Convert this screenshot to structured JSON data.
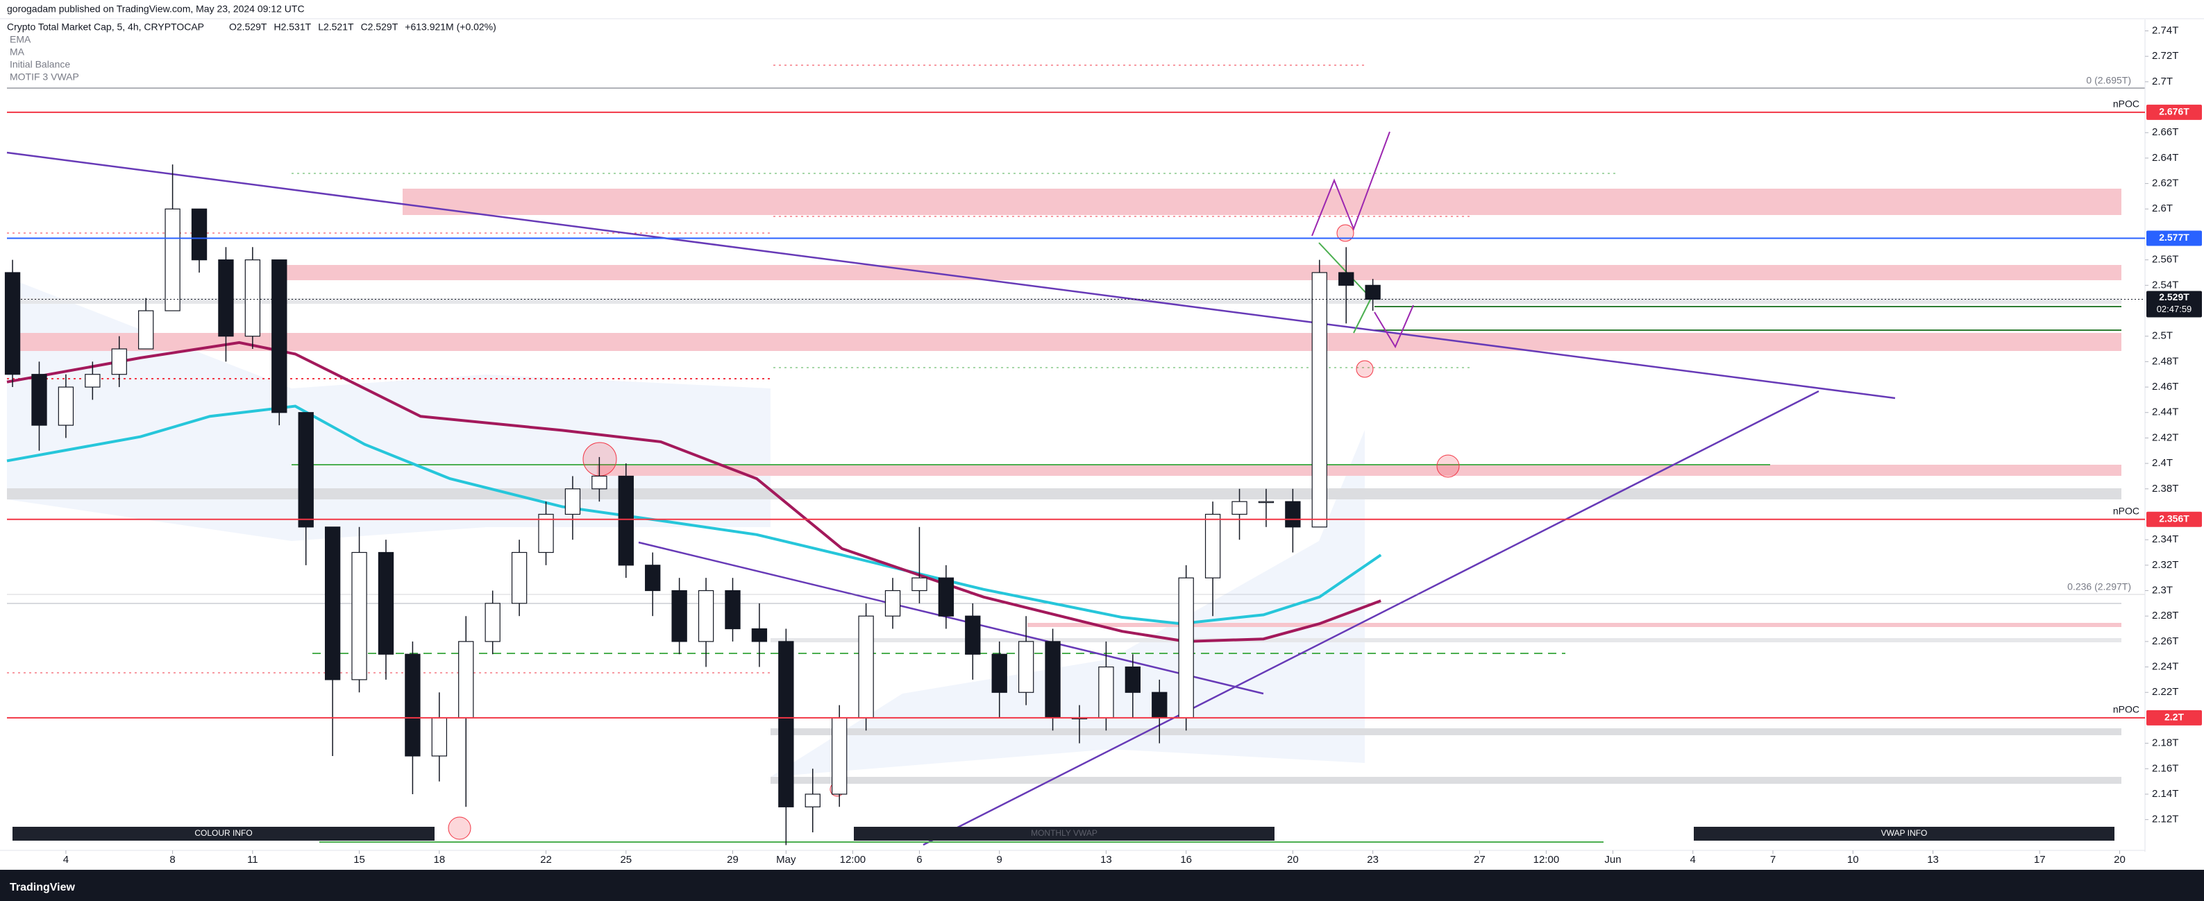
{
  "header": {
    "publisher": "gorogadam published on TradingView.com, May 23, 2024 09:12 UTC"
  },
  "chart_data": {
    "type": "candlestick",
    "title": "Crypto Total Market Cap, 5, 4h, CRYPTOCAP",
    "ohlc_labels": [
      "O2.529T",
      "H2.531T",
      "L2.521T",
      "C2.529T",
      "+613.921M (+0.02%)"
    ],
    "other_indicators": [
      "Initial Balance",
      "MOTIF 3 VWAP"
    ],
    "x": [
      2,
      3,
      4,
      5,
      6,
      7,
      8,
      9,
      10,
      11,
      12,
      13,
      14,
      15,
      16,
      17,
      18,
      19,
      20,
      21,
      22,
      23,
      24,
      25,
      26,
      27,
      28,
      29,
      30,
      31,
      32,
      33,
      34,
      35,
      36,
      37,
      38,
      39,
      40,
      41,
      42,
      43,
      44,
      45,
      46,
      47,
      48,
      49,
      50,
      51,
      52,
      53
    ],
    "open": [
      2.55,
      2.47,
      2.43,
      2.46,
      2.47,
      2.49,
      2.52,
      2.6,
      2.56,
      2.5,
      2.56,
      2.44,
      2.35,
      2.23,
      2.33,
      2.25,
      2.17,
      2.2,
      2.26,
      2.29,
      2.33,
      2.36,
      2.38,
      2.39,
      2.32,
      2.3,
      2.26,
      2.3,
      2.27,
      2.26,
      2.13,
      2.14,
      2.2,
      2.28,
      2.3,
      2.31,
      2.28,
      2.25,
      2.22,
      2.26,
      2.2,
      2.2,
      2.24,
      2.22,
      2.2,
      2.31,
      2.36,
      2.37,
      2.37,
      2.35,
      2.55,
      2.54
    ],
    "high": [
      2.56,
      2.48,
      2.47,
      2.48,
      2.5,
      2.53,
      2.635,
      2.6,
      2.57,
      2.57,
      2.56,
      2.44,
      2.35,
      2.35,
      2.34,
      2.26,
      2.22,
      2.28,
      2.3,
      2.34,
      2.37,
      2.39,
      2.405,
      2.4,
      2.33,
      2.31,
      2.31,
      2.31,
      2.29,
      2.27,
      2.16,
      2.21,
      2.29,
      2.31,
      2.35,
      2.32,
      2.29,
      2.26,
      2.28,
      2.27,
      2.21,
      2.26,
      2.25,
      2.23,
      2.32,
      2.37,
      2.38,
      2.38,
      2.38,
      2.56,
      2.57,
      2.545
    ],
    "low": [
      2.46,
      2.41,
      2.42,
      2.45,
      2.46,
      2.49,
      2.52,
      2.55,
      2.48,
      2.49,
      2.43,
      2.32,
      2.17,
      2.22,
      2.23,
      2.14,
      2.15,
      2.13,
      2.25,
      2.28,
      2.32,
      2.34,
      2.37,
      2.31,
      2.28,
      2.25,
      2.24,
      2.26,
      2.24,
      2.1,
      2.11,
      2.13,
      2.19,
      2.27,
      2.29,
      2.27,
      2.23,
      2.2,
      2.21,
      2.19,
      2.18,
      2.19,
      2.2,
      2.18,
      2.19,
      2.28,
      2.34,
      2.35,
      2.33,
      2.35,
      2.51,
      2.52
    ],
    "close": [
      2.47,
      2.43,
      2.46,
      2.47,
      2.49,
      2.52,
      2.6,
      2.56,
      2.5,
      2.56,
      2.44,
      2.35,
      2.23,
      2.33,
      2.25,
      2.17,
      2.2,
      2.26,
      2.29,
      2.33,
      2.36,
      2.38,
      2.39,
      2.32,
      2.3,
      2.26,
      2.3,
      2.27,
      2.26,
      2.13,
      2.14,
      2.2,
      2.28,
      2.3,
      2.31,
      2.28,
      2.25,
      2.22,
      2.26,
      2.2,
      2.2,
      2.24,
      2.22,
      2.2,
      2.31,
      2.36,
      2.37,
      2.37,
      2.35,
      2.55,
      2.54,
      2.529
    ],
    "up_color": "#ffffff",
    "down_color": "#131722",
    "series": [
      {
        "name": "EMA",
        "color": "#26c6da",
        "x": [
          1.79,
          6.8,
          9.4,
          12.6,
          15.2,
          18.4,
          22.6,
          26.3,
          29.9,
          33.1,
          38.4,
          43.6,
          45.8,
          48.9,
          51,
          53.3
        ],
        "values": [
          2.402,
          2.421,
          2.437,
          2.445,
          2.415,
          2.388,
          2.366,
          2.355,
          2.344,
          2.328,
          2.301,
          2.279,
          2.274,
          2.281,
          2.295,
          2.328
        ]
      },
      {
        "name": "MA",
        "color": "#a3195b",
        "x": [
          1.79,
          6.8,
          10.5,
          12.6,
          17.3,
          22.6,
          26.3,
          29.9,
          33.1,
          38.4,
          43.6,
          46,
          48.9,
          51,
          53.3
        ],
        "values": [
          2.464,
          2.483,
          2.495,
          2.486,
          2.437,
          2.426,
          2.417,
          2.388,
          2.333,
          2.295,
          2.268,
          2.26,
          2.262,
          2.274,
          2.292
        ]
      }
    ],
    "xlim": [
      1.79,
      81.95
    ],
    "xticks": [
      4,
      8,
      11,
      15,
      18,
      22,
      25,
      29,
      {
        "value": 31,
        "label": "May"
      },
      {
        "value": 33.5,
        "label": "12:00"
      },
      {
        "value": 36,
        "label": "6"
      },
      {
        "value": 39,
        "label": "9"
      },
      {
        "value": 43,
        "label": "13"
      },
      {
        "value": 46,
        "label": "16"
      },
      {
        "value": 50,
        "label": "20"
      },
      {
        "value": 53,
        "label": "23"
      },
      {
        "value": 57,
        "label": "27"
      },
      {
        "value": 59.5,
        "label": "12:00"
      },
      {
        "value": 62,
        "label": "Jun"
      },
      {
        "value": 65,
        "label": "4"
      },
      {
        "value": 68,
        "label": "7"
      },
      {
        "value": 71,
        "label": "10"
      },
      {
        "value": 74,
        "label": "13"
      },
      {
        "value": 78,
        "label": "17"
      },
      {
        "value": 81,
        "label": "20"
      }
    ],
    "ylim": [
      2.098,
      2.749
    ],
    "yticks": [
      {
        "value": 2.74,
        "label": "2.74T"
      },
      {
        "value": 2.72,
        "label": "2.72T"
      },
      {
        "value": 2.7,
        "label": "2.7T"
      },
      {
        "value": 2.66,
        "label": "2.66T"
      },
      {
        "value": 2.64,
        "label": "2.64T"
      },
      {
        "value": 2.62,
        "label": "2.62T"
      },
      {
        "value": 2.6,
        "label": "2.6T"
      },
      {
        "value": 2.56,
        "label": "2.56T"
      },
      {
        "value": 2.54,
        "label": "2.54T"
      },
      {
        "value": 2.5,
        "label": "2.5T"
      },
      {
        "value": 2.48,
        "label": "2.48T"
      },
      {
        "value": 2.46,
        "label": "2.46T"
      },
      {
        "value": 2.44,
        "label": "2.44T"
      },
      {
        "value": 2.42,
        "label": "2.42T"
      },
      {
        "value": 2.4,
        "label": "2.4T"
      },
      {
        "value": 2.38,
        "label": "2.38T"
      },
      {
        "value": 2.34,
        "label": "2.34T"
      },
      {
        "value": 2.32,
        "label": "2.32T"
      },
      {
        "value": 2.3,
        "label": "2.3T"
      },
      {
        "value": 2.28,
        "label": "2.28T"
      },
      {
        "value": 2.26,
        "label": "2.26T"
      },
      {
        "value": 2.24,
        "label": "2.24T"
      },
      {
        "value": 2.22,
        "label": "2.22T"
      },
      {
        "value": 2.18,
        "label": "2.18T"
      },
      {
        "value": 2.16,
        "label": "2.16T"
      },
      {
        "value": 2.14,
        "label": "2.14T"
      },
      {
        "value": 2.12,
        "label": "2.12T"
      }
    ],
    "levels": [
      {
        "value": 2.676,
        "label": "2.676T",
        "color": "#f23645",
        "tag": "nPOC"
      },
      {
        "value": 2.577,
        "label": "2.577T",
        "color": "#2962ff"
      },
      {
        "value": 2.356,
        "label": "2.356T",
        "color": "#f23645",
        "tag": "nPOC"
      },
      {
        "value": 2.2,
        "label": "2.2T",
        "color": "#f23645",
        "tag": "nPOC"
      }
    ],
    "last_price": {
      "value": 2.529,
      "label": "2.529T",
      "countdown": "02:47:59",
      "color": "#131722"
    },
    "fib_levels": [
      {
        "value": 2.695,
        "label": "0 (2.695T)"
      },
      {
        "value": 2.297,
        "label": "0.236 (2.297T)"
      }
    ],
    "panels": [
      "COLOUR INFO",
      "MONTHLY VWAP",
      "VWAP INFO"
    ]
  },
  "footer": {
    "brand": "TradingView"
  }
}
